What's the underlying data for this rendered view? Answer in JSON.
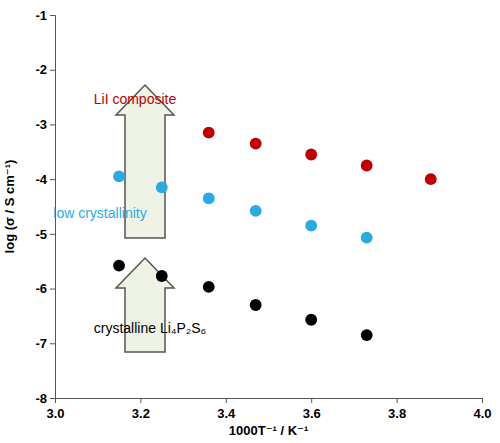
{
  "chart_data": {
    "type": "scatter",
    "x_label": "1000T⁻¹ / K⁻¹",
    "y_label": "log (σ / S cm⁻¹)",
    "marker": "circle",
    "xlim": [
      3.0,
      4.0
    ],
    "xticks": [
      {
        "value": 3.0,
        "label": "3.0"
      },
      {
        "value": 3.2,
        "label": "3.2"
      },
      {
        "value": 3.4,
        "label": "3.4"
      },
      {
        "value": 3.6,
        "label": "3.6"
      },
      {
        "value": 3.8,
        "label": "3.8"
      },
      {
        "value": 4.0,
        "label": "4.0"
      }
    ],
    "ylim": [
      -8,
      -1
    ],
    "yticks": [
      -8,
      -7,
      -6,
      -5,
      -4,
      -3,
      -2,
      -1
    ],
    "series": [
      {
        "name": "LiI composite",
        "color": "#c00000",
        "x": [
          3.36,
          3.47,
          3.6,
          3.73,
          3.88
        ],
        "values": [
          -3.15,
          -3.35,
          -3.55,
          -3.75,
          -4.0
        ]
      },
      {
        "name": "low crystallinity",
        "color": "#29abe2",
        "x": [
          3.15,
          3.25,
          3.36,
          3.47,
          3.6,
          3.73
        ],
        "values": [
          -3.95,
          -4.15,
          -4.35,
          -4.58,
          -4.85,
          -5.07
        ]
      },
      {
        "name": "crystalline Li₄P₂S₆",
        "color": "#000000",
        "x": [
          3.15,
          3.25,
          3.36,
          3.47,
          3.6,
          3.73
        ],
        "values": [
          -5.58,
          -5.77,
          -5.97,
          -6.3,
          -6.57,
          -6.85
        ]
      }
    ]
  }
}
